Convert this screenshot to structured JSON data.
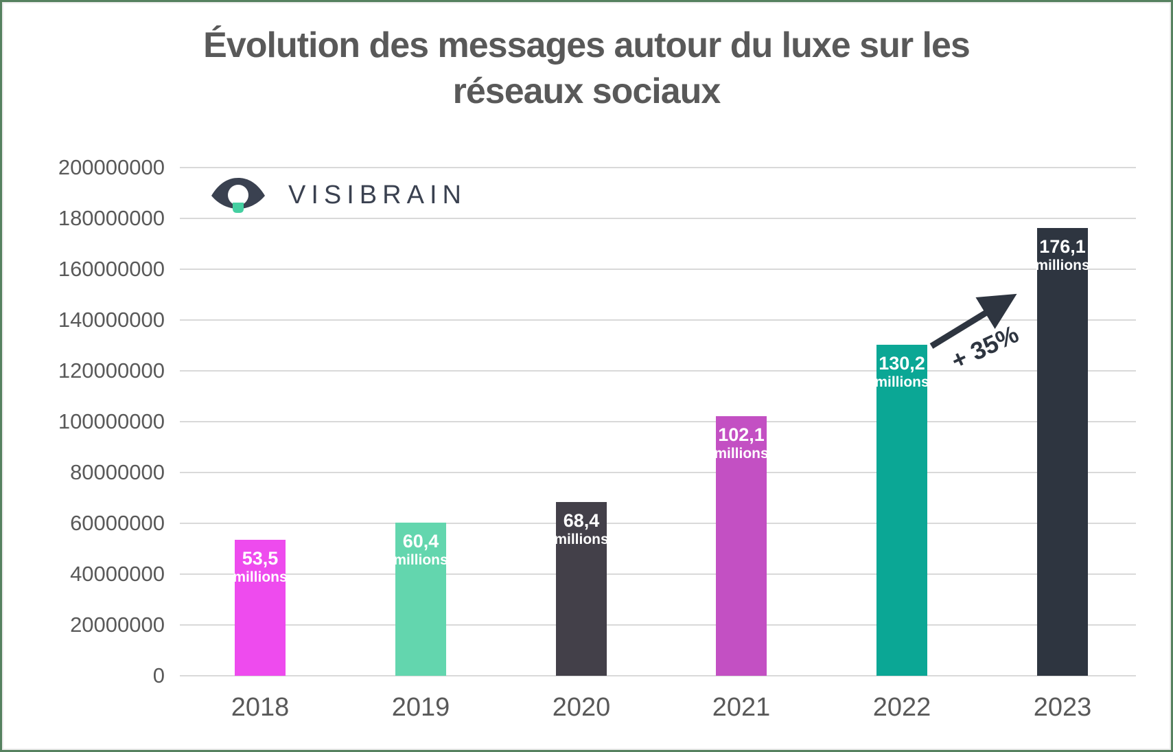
{
  "frame": {
    "border_color": "#55815f",
    "background": "#ffffff"
  },
  "title": {
    "lines": [
      "Évolution des messages autour du luxe sur les",
      "réseaux sociaux"
    ],
    "color": "#595959"
  },
  "logo": {
    "text": "VISIBRAIN",
    "text_color": "#3a4150",
    "eye_color": "#3a4150",
    "pupil_color": "#ffffff",
    "bulb_base_color": "#45cfa1"
  },
  "chart_data": {
    "type": "bar",
    "title": "Évolution des messages autour du luxe sur les réseaux sociaux",
    "categories": [
      "2018",
      "2019",
      "2020",
      "2021",
      "2022",
      "2023"
    ],
    "values": [
      53500000,
      60400000,
      68400000,
      102100000,
      130200000,
      176100000
    ],
    "bar_labels": [
      [
        "53,5",
        "millions"
      ],
      [
        "60,4",
        "millions"
      ],
      [
        "68,4",
        "millions"
      ],
      [
        "102,1",
        "millions"
      ],
      [
        "130,2",
        "millions"
      ],
      [
        "176,1",
        "millions"
      ]
    ],
    "bar_colors": [
      "#ee4bee",
      "#63d6ae",
      "#434049",
      "#c350c3",
      "#0ba795",
      "#2e3540"
    ],
    "ylim": [
      0,
      200000000
    ],
    "ytick_step": 20000000,
    "yticks": [
      "200000000",
      "180000000",
      "160000000",
      "140000000",
      "120000000",
      "100000000",
      "80000000",
      "60000000",
      "40000000",
      "20000000",
      "0"
    ],
    "xlabel": "",
    "ylabel": "",
    "grid": true,
    "legend": "none",
    "gridline_color": "#d9d9d9",
    "axis_text_color": "#595959",
    "bar_value_text_color": "#ffffff",
    "annotation": {
      "text": "+ 35%",
      "color": "#2e3540",
      "rotation_deg": -25,
      "arrow_from_category": "2022",
      "arrow_to_category": "2023"
    }
  }
}
